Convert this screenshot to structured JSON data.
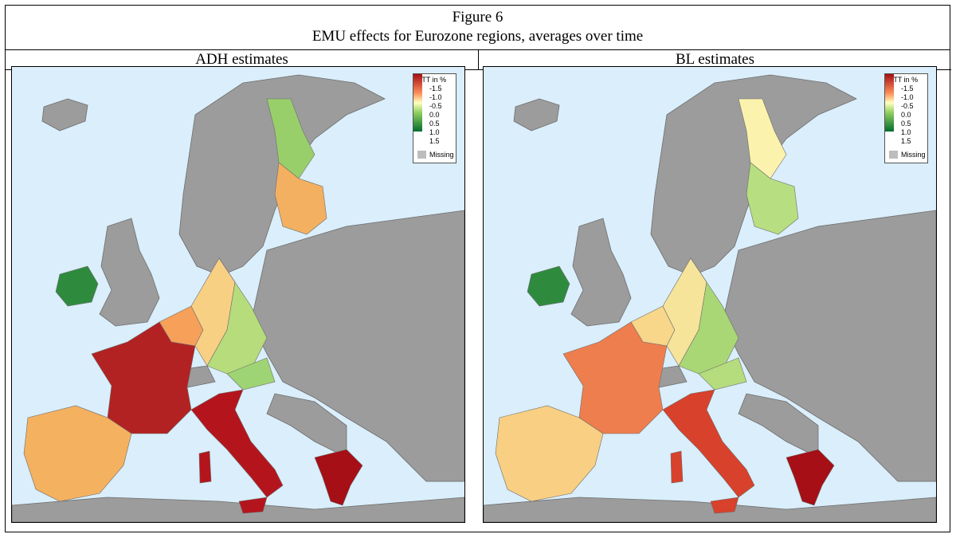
{
  "figure": {
    "title": "Figure 6",
    "subtitle": "EMU effects for Eurozone regions, averages over time"
  },
  "panels": [
    {
      "heading": "ADH estimates",
      "legend": {
        "title": "ATT in %",
        "ticks": [
          "-1.5",
          "-1.0",
          "-0.5",
          "0.0",
          "0.5",
          "1.0",
          "1.5"
        ],
        "missing_label": "Missing"
      }
    },
    {
      "heading": "BL estimates",
      "legend": {
        "title": "ATT in %",
        "ticks": [
          "-1.5",
          "-1.0",
          "-0.5",
          "0.0",
          "0.5",
          "1.0",
          "1.5"
        ],
        "missing_label": "Missing"
      }
    }
  ],
  "colors": {
    "sea": "#daeefb",
    "non_eurozone_land": "#9c9c9c",
    "missing": "#bdbdbd",
    "scale_negative": "#a50f15",
    "scale_mid": "#ffffbf",
    "scale_positive": "#006d2c"
  },
  "map_data": {
    "adh": {
      "ireland": "#2e8b3e",
      "iberia": "#f4b15f",
      "france": "#b22222",
      "italy": "#b4151d",
      "greece": "#a50f15",
      "benelux": "#f6a05a",
      "germany_east": "#b6dc7c",
      "germany_west": "#f8d084",
      "austria": "#9fd474",
      "finland_north": "#98cf6b",
      "finland_south": "#f3b061"
    },
    "bl": {
      "ireland": "#2e8b3e",
      "iberia": "#f8cf83",
      "france": "#ee7e4e",
      "italy": "#d8412b",
      "greece": "#a50f15",
      "benelux": "#f8d68a",
      "germany_east": "#aad776",
      "germany_west": "#f6e49a",
      "austria": "#b5dc7d",
      "finland_north": "#fbf3ad",
      "finland_south": "#b7de80"
    }
  }
}
